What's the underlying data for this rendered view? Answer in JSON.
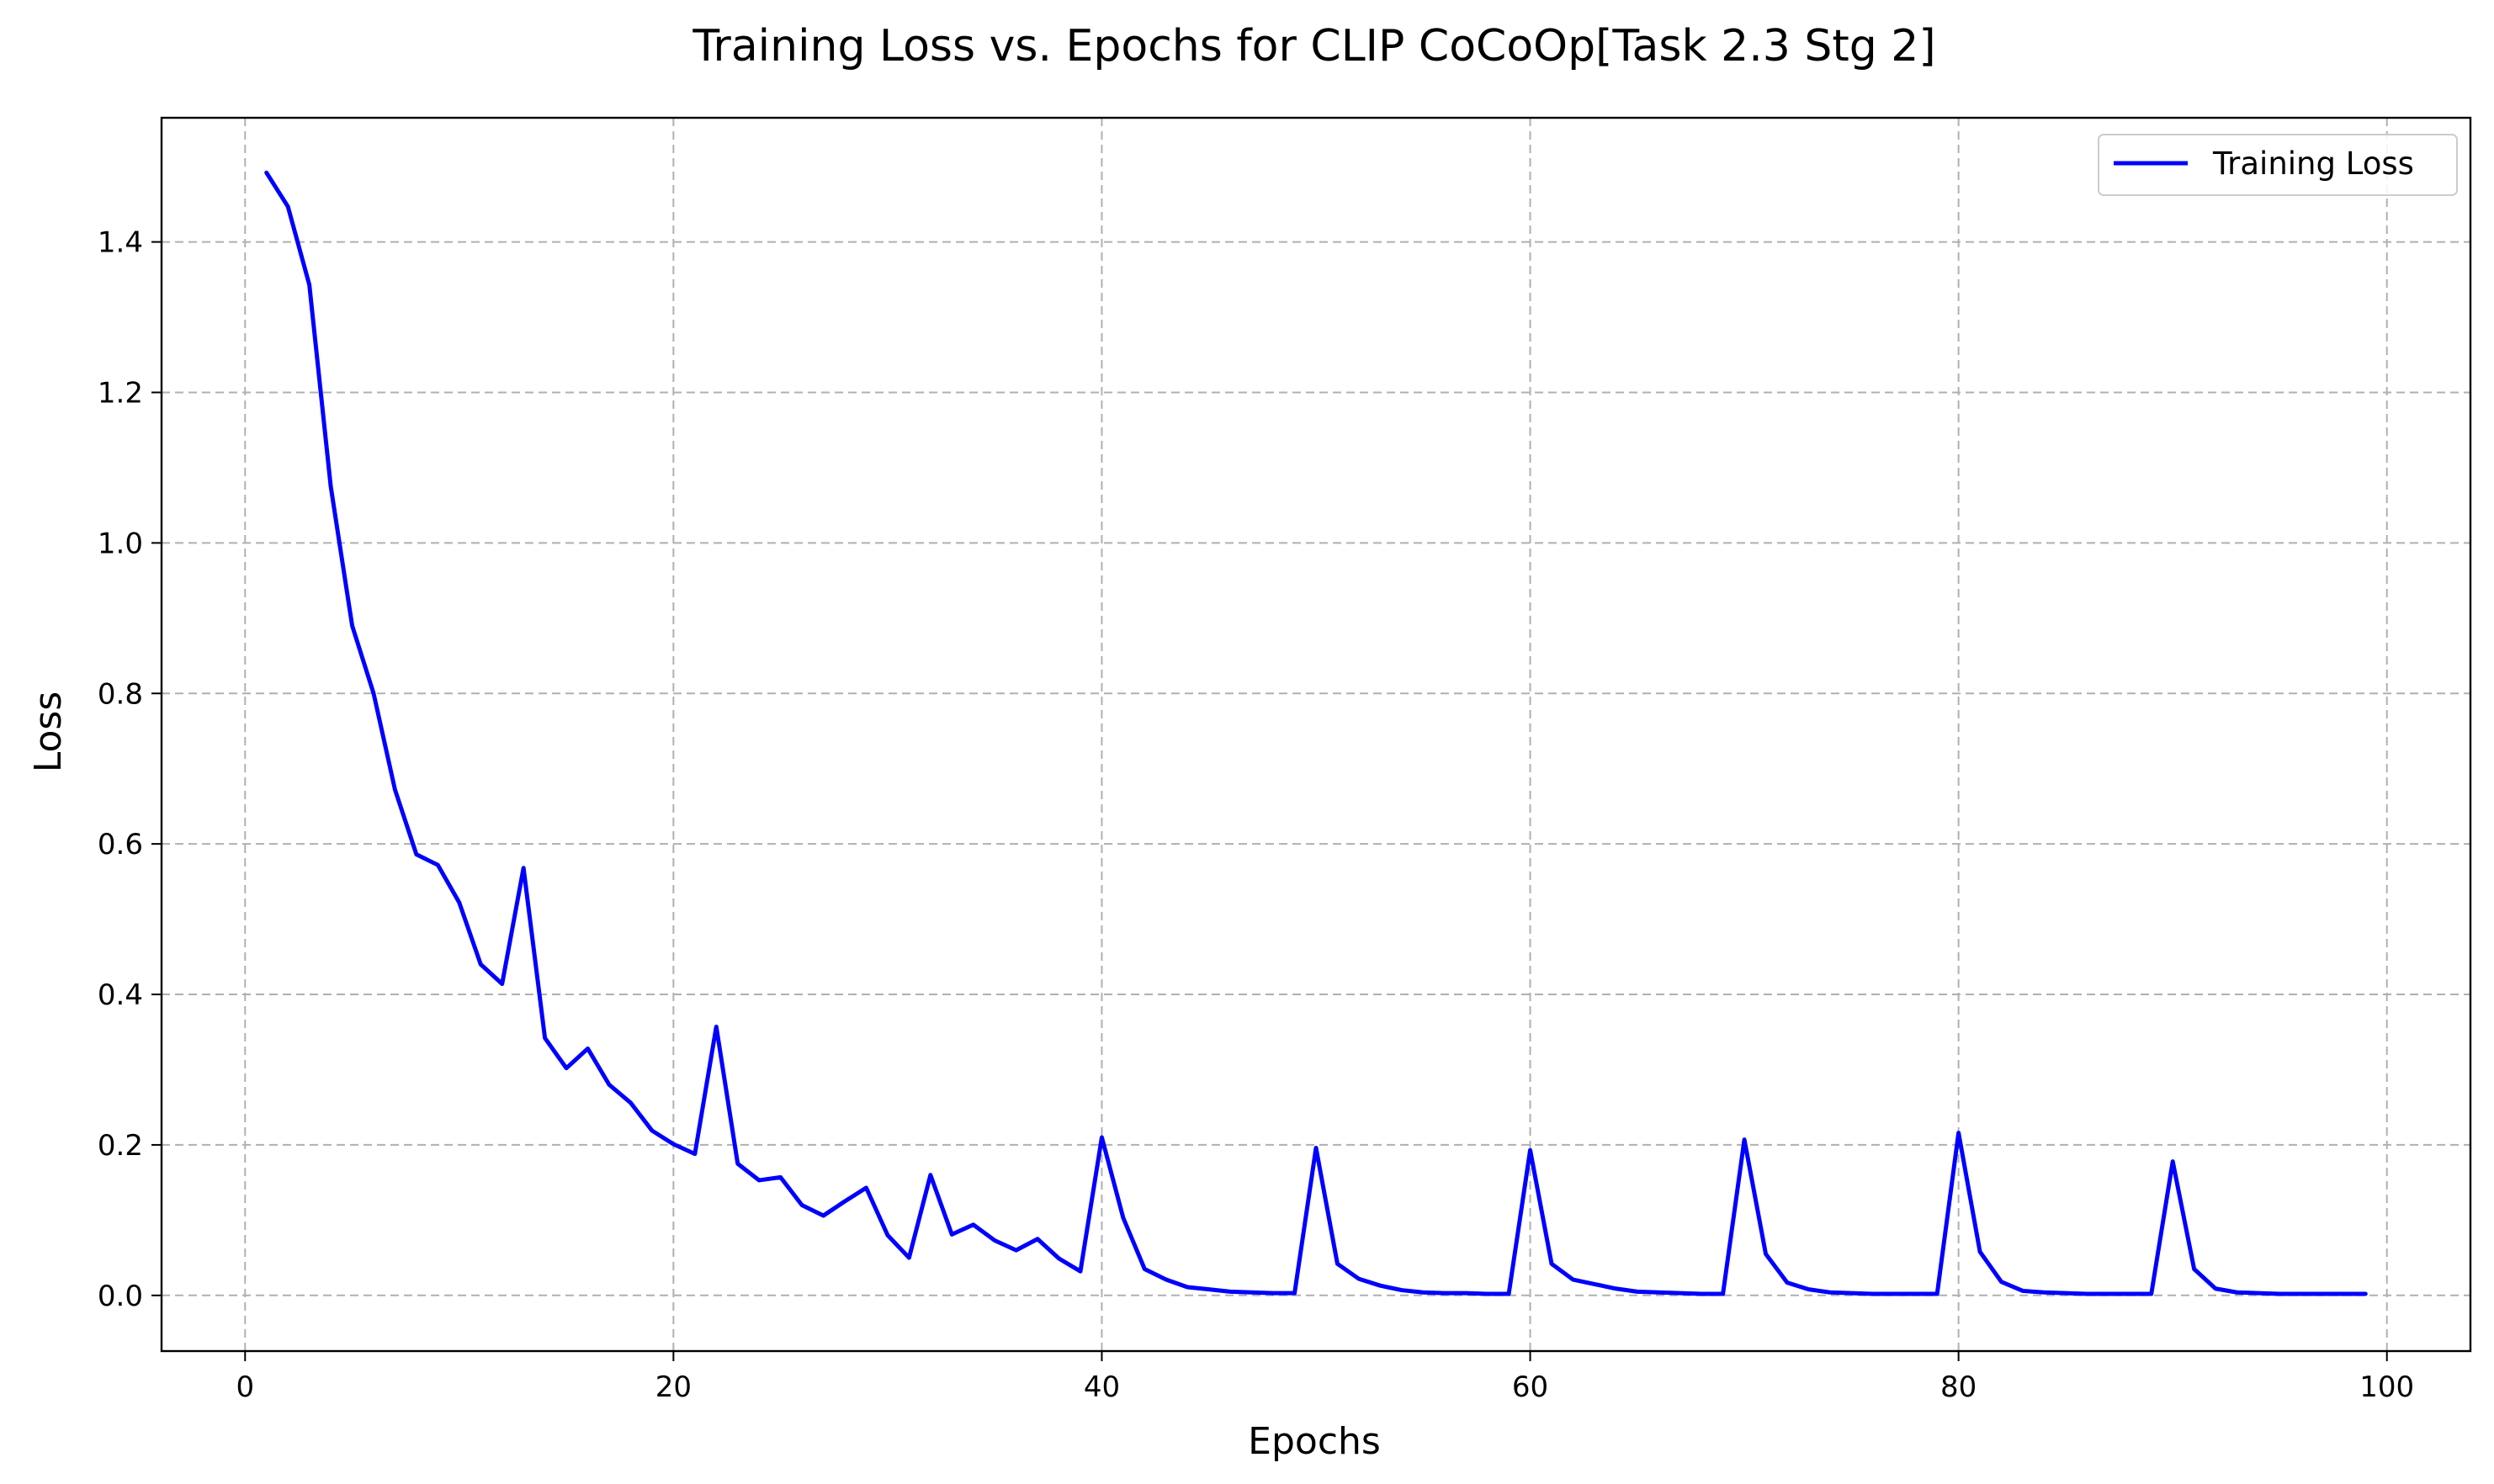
{
  "chart_data": {
    "type": "line",
    "title": "Training Loss vs. Epochs for CLIP CoCoOp[Task 2.3 Stg 2]",
    "xlabel": "Epochs",
    "ylabel": "Loss",
    "xlim": [
      -3.9,
      103.9
    ],
    "ylim": [
      -0.074,
      1.565
    ],
    "xticks": [
      0,
      20,
      40,
      60,
      80,
      100
    ],
    "xtick_labels": [
      "0",
      "20",
      "40",
      "60",
      "80",
      "100"
    ],
    "yticks": [
      0.0,
      0.2,
      0.4,
      0.6,
      0.8,
      1.0,
      1.2,
      1.4
    ],
    "ytick_labels": [
      "0.0",
      "0.2",
      "0.4",
      "0.6",
      "0.8",
      "1.0",
      "1.2",
      "1.4"
    ],
    "grid": true,
    "legend": "top-right",
    "series": [
      {
        "name": "Training Loss",
        "color": "#0000ff",
        "x": [
          1,
          2,
          3,
          4,
          5,
          6,
          7,
          8,
          9,
          10,
          11,
          12,
          13,
          14,
          15,
          16,
          17,
          18,
          19,
          20,
          21,
          22,
          23,
          24,
          25,
          26,
          27,
          28,
          29,
          30,
          31,
          32,
          33,
          34,
          35,
          36,
          37,
          38,
          39,
          40,
          41,
          42,
          43,
          44,
          45,
          46,
          47,
          48,
          49,
          50,
          51,
          52,
          53,
          54,
          55,
          56,
          57,
          58,
          59,
          60,
          61,
          62,
          63,
          64,
          65,
          66,
          67,
          68,
          69,
          70,
          71,
          72,
          73,
          74,
          75,
          76,
          77,
          78,
          79,
          80,
          81,
          82,
          83,
          84,
          85,
          86,
          87,
          88,
          89,
          90,
          91,
          92,
          93,
          94,
          95,
          96,
          97,
          98,
          99
        ],
        "values": [
          1.492,
          1.447,
          1.343,
          1.075,
          0.89,
          0.8,
          0.672,
          0.586,
          0.572,
          0.522,
          0.44,
          0.414,
          0.568,
          0.342,
          0.302,
          0.328,
          0.28,
          0.256,
          0.219,
          0.201,
          0.188,
          0.357,
          0.175,
          0.153,
          0.157,
          0.12,
          0.106,
          0.125,
          0.143,
          0.08,
          0.05,
          0.16,
          0.081,
          0.094,
          0.073,
          0.06,
          0.075,
          0.049,
          0.032,
          0.21,
          0.103,
          0.035,
          0.021,
          0.011,
          0.008,
          0.005,
          0.004,
          0.003,
          0.003,
          0.196,
          0.042,
          0.022,
          0.013,
          0.007,
          0.004,
          0.003,
          0.003,
          0.002,
          0.002,
          0.193,
          0.042,
          0.021,
          0.015,
          0.009,
          0.005,
          0.004,
          0.003,
          0.002,
          0.002,
          0.207,
          0.055,
          0.017,
          0.008,
          0.004,
          0.003,
          0.002,
          0.002,
          0.002,
          0.002,
          0.216,
          0.058,
          0.018,
          0.006,
          0.004,
          0.003,
          0.002,
          0.002,
          0.002,
          0.002,
          0.178,
          0.035,
          0.009,
          0.004,
          0.003,
          0.002,
          0.002,
          0.002,
          0.002,
          0.002
        ]
      }
    ]
  }
}
